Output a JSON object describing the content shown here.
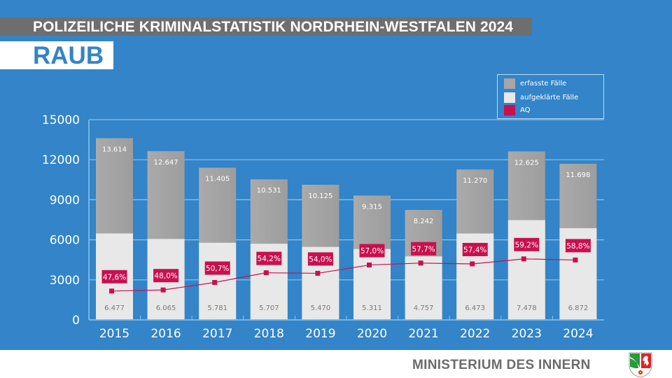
{
  "header": {
    "banner_title": "POLIZEILICHE KRIMINALSTATISTIK NORDRHEIN-WESTFALEN 2024",
    "subject": "RAUB"
  },
  "footer": {
    "ministry": "MINISTERIUM DES INNERN",
    "logo": "nrw-coat-of-arms-icon"
  },
  "colors": {
    "background": "#3384c8",
    "erfasste": "#a6a6a6",
    "aufgeklaerte": "#e8e8e8",
    "aq": "#c8104f",
    "grid": "#8cc4ee",
    "banner": "#6e6e6e"
  },
  "chart_data": {
    "type": "bar",
    "stacked": "overlay",
    "title": "RAUB",
    "categories": [
      "2015",
      "2016",
      "2017",
      "2018",
      "2019",
      "2020",
      "2021",
      "2022",
      "2023",
      "2024"
    ],
    "series": [
      {
        "name": "erfasste Fälle",
        "values": [
          13614,
          12647,
          11405,
          10531,
          10125,
          9315,
          8242,
          11270,
          12625,
          11698
        ],
        "labels": [
          "13.614",
          "12.647",
          "11.405",
          "10.531",
          "10.125",
          "9.315",
          "8.242",
          "11.270",
          "12.625",
          "11.698"
        ]
      },
      {
        "name": "aufgeklärte Fälle",
        "values": [
          6477,
          6065,
          5781,
          5707,
          5470,
          5311,
          4757,
          6473,
          7478,
          6872
        ],
        "labels": [
          "6.477",
          "6.065",
          "5.781",
          "5.707",
          "5.470",
          "5.311",
          "4.757",
          "6.473",
          "7.478",
          "6.872"
        ]
      },
      {
        "name": "AQ",
        "type": "line",
        "axis": "secondary",
        "values": [
          47.6,
          48.0,
          50.7,
          54.2,
          54.0,
          57.0,
          57.7,
          57.4,
          59.2,
          58.8
        ],
        "labels": [
          "47,6%",
          "48,0%",
          "50,7%",
          "54,2%",
          "54,0%",
          "57,0%",
          "57,7%",
          "57,4%",
          "59,2%",
          "58,8%"
        ]
      }
    ],
    "yticks": [
      "0",
      "3000",
      "6000",
      "9000",
      "12000",
      "15000"
    ],
    "ylim": [
      0,
      15000
    ],
    "y2lim": [
      37.2,
      109.4
    ],
    "xlabel": "",
    "ylabel": "",
    "grid": true,
    "legend": {
      "position": "top-right",
      "entries": [
        "erfasste Fälle",
        "aufgeklärte Fälle",
        "AQ"
      ]
    }
  }
}
